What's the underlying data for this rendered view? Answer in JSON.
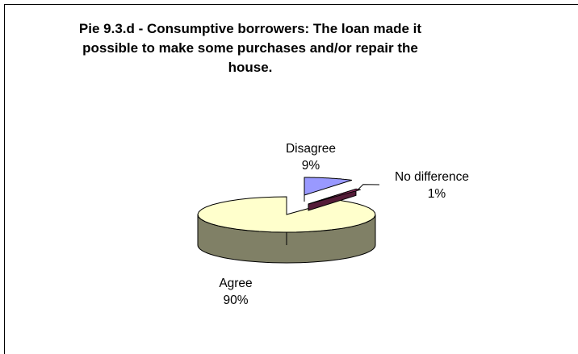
{
  "chart_data": {
    "type": "pie",
    "title_lines": [
      "Pie 9.3.d - Consumptive borrowers: The loan made it",
      "possible to make some purchases and/or repair the",
      "house."
    ],
    "slices": [
      {
        "label": "Disagree",
        "value": 9,
        "value_text": "9%",
        "color": "#9999ff"
      },
      {
        "label": "No difference",
        "value": 1,
        "value_text": "1%",
        "color": "#993366"
      },
      {
        "label": "Agree",
        "value": 90,
        "value_text": "90%",
        "color": "#ffffcc"
      }
    ]
  }
}
